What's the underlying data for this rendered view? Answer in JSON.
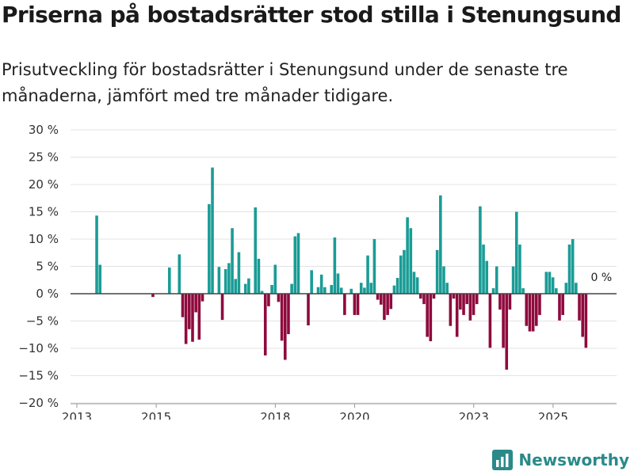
{
  "title": "Priserna på bostadsrätter stod stilla i Stenungsund",
  "subtitle": "Prisutveckling för bostadsrätter i Stenungsund under de senaste tre månaderna, jämfört med tre månader tidigare.",
  "brand": "Newsworthy",
  "colors": {
    "positive": "#1a9c96",
    "negative": "#8e0a3d",
    "grid": "#e3e3e3",
    "zero": "#444444",
    "brand": "#2a8a8a"
  },
  "chart_data": {
    "type": "bar",
    "title": "Priserna på bostadsrätter stod stilla i Stenungsund",
    "xlabel": "",
    "ylabel": "",
    "ylim": [
      -20,
      30
    ],
    "y_ticks": [
      30,
      25,
      20,
      15,
      10,
      5,
      0,
      -5,
      -10,
      -15,
      -20
    ],
    "y_tick_labels": [
      "30 %",
      "25 %",
      "20 %",
      "15 %",
      "10 %",
      "5 %",
      "0 %",
      "−5 %",
      "−10 %",
      "−15 %",
      "−20 %"
    ],
    "x_tick_labels": [
      "2013",
      "2015",
      "2018",
      "2020",
      "2023",
      "2025"
    ],
    "x_tick_positions": [
      2013.0,
      2015.0,
      2018.0,
      2020.0,
      2023.0,
      2025.0
    ],
    "x_range": [
      2013.0,
      2026.6
    ],
    "last_value_label": "0 %",
    "series": [
      {
        "name": "Prisutveckling",
        "start": 2013.5,
        "step": 0.0833,
        "values": [
          14.3,
          5.3,
          0,
          0,
          0,
          0,
          0,
          0,
          0,
          0,
          0,
          0,
          0,
          0,
          0,
          0,
          0,
          -0.6,
          0,
          0,
          0,
          0,
          4.8,
          0,
          0,
          7.2,
          -4.3,
          -9.2,
          -6.5,
          -8.8,
          -3.4,
          -8.4,
          -1.4,
          0,
          16.4,
          23.1,
          0,
          4.9,
          -4.8,
          4.5,
          5.6,
          12,
          2.7,
          7.6,
          0,
          1.8,
          2.8,
          0,
          15.8,
          6.4,
          0.5,
          -11.3,
          -2.3,
          1.6,
          5.3,
          -1.5,
          -8.6,
          -12.1,
          -7.4,
          1.8,
          10.5,
          11.1,
          0,
          0,
          -5.8,
          4.3,
          0,
          1.2,
          3.5,
          1.2,
          0,
          1.6,
          10.3,
          3.7,
          1.1,
          -3.9,
          0,
          0.9,
          -3.9,
          -3.9,
          2,
          1.1,
          7,
          2,
          10,
          -1.1,
          -2,
          -4.8,
          -3.9,
          -2.8,
          1.5,
          2.9,
          7,
          8,
          14,
          12,
          4,
          3,
          -0.9,
          -1.9,
          -7.9,
          -8.7,
          -0.9,
          8,
          18,
          5,
          2,
          -5.9,
          -0.9,
          -7.9,
          -2.9,
          -3.9,
          -1.9,
          -4.9,
          -3.9,
          -1.9,
          16,
          9,
          6,
          -9.9,
          1,
          5,
          -2.9,
          -9.9,
          -13.9,
          -2.9,
          5,
          15,
          9,
          1,
          -5.9,
          -6.9,
          -6.9,
          -5.9,
          -3.9,
          0,
          4,
          4,
          3,
          1,
          -4.9,
          -3.9,
          2,
          9,
          10,
          2,
          -4.9,
          -7.9,
          -9.9,
          0
        ]
      }
    ]
  }
}
